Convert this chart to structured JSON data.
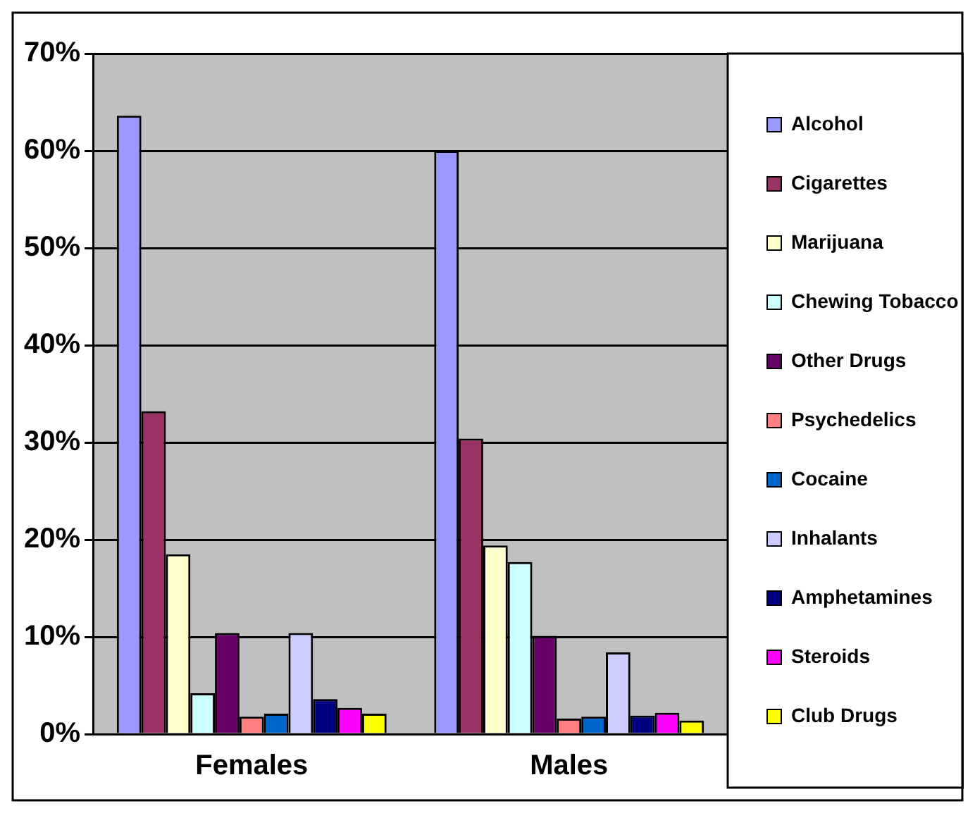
{
  "chart_data": {
    "type": "bar",
    "categories": [
      "Females",
      "Males"
    ],
    "series": [
      {
        "name": "Alcohol",
        "color": "#9999ff",
        "values": [
          63.6,
          60.0
        ]
      },
      {
        "name": "Cigarettes",
        "color": "#993366",
        "values": [
          33.2,
          30.4
        ]
      },
      {
        "name": "Marijuana",
        "color": "#ffffcc",
        "values": [
          18.5,
          19.4
        ]
      },
      {
        "name": "Chewing Tobacco",
        "color": "#ccffff",
        "values": [
          4.2,
          17.7
        ]
      },
      {
        "name": "Other Drugs",
        "color": "#660066",
        "values": [
          10.4,
          10.1
        ]
      },
      {
        "name": "Psychedelics",
        "color": "#ff8080",
        "values": [
          1.8,
          1.6
        ]
      },
      {
        "name": "Cocaine",
        "color": "#0066cc",
        "values": [
          2.1,
          1.8
        ]
      },
      {
        "name": "Inhalants",
        "color": "#ccccff",
        "values": [
          10.4,
          8.4
        ]
      },
      {
        "name": "Amphetamines",
        "color": "#000080",
        "values": [
          3.6,
          1.9
        ]
      },
      {
        "name": "Steroids",
        "color": "#ff00ff",
        "values": [
          2.7,
          2.2
        ]
      },
      {
        "name": "Club Drugs",
        "color": "#ffff00",
        "values": [
          2.1,
          1.4
        ]
      }
    ],
    "ylim": [
      0,
      70
    ],
    "yticks": [
      {
        "value": 0,
        "label": "0%"
      },
      {
        "value": 10,
        "label": "10%"
      },
      {
        "value": 20,
        "label": "20%"
      },
      {
        "value": 30,
        "label": "30%"
      },
      {
        "value": 40,
        "label": "40%"
      },
      {
        "value": 50,
        "label": "50%"
      },
      {
        "value": 60,
        "label": "60%"
      },
      {
        "value": 70,
        "label": "70%"
      }
    ],
    "grid": "y",
    "legend": "right"
  }
}
